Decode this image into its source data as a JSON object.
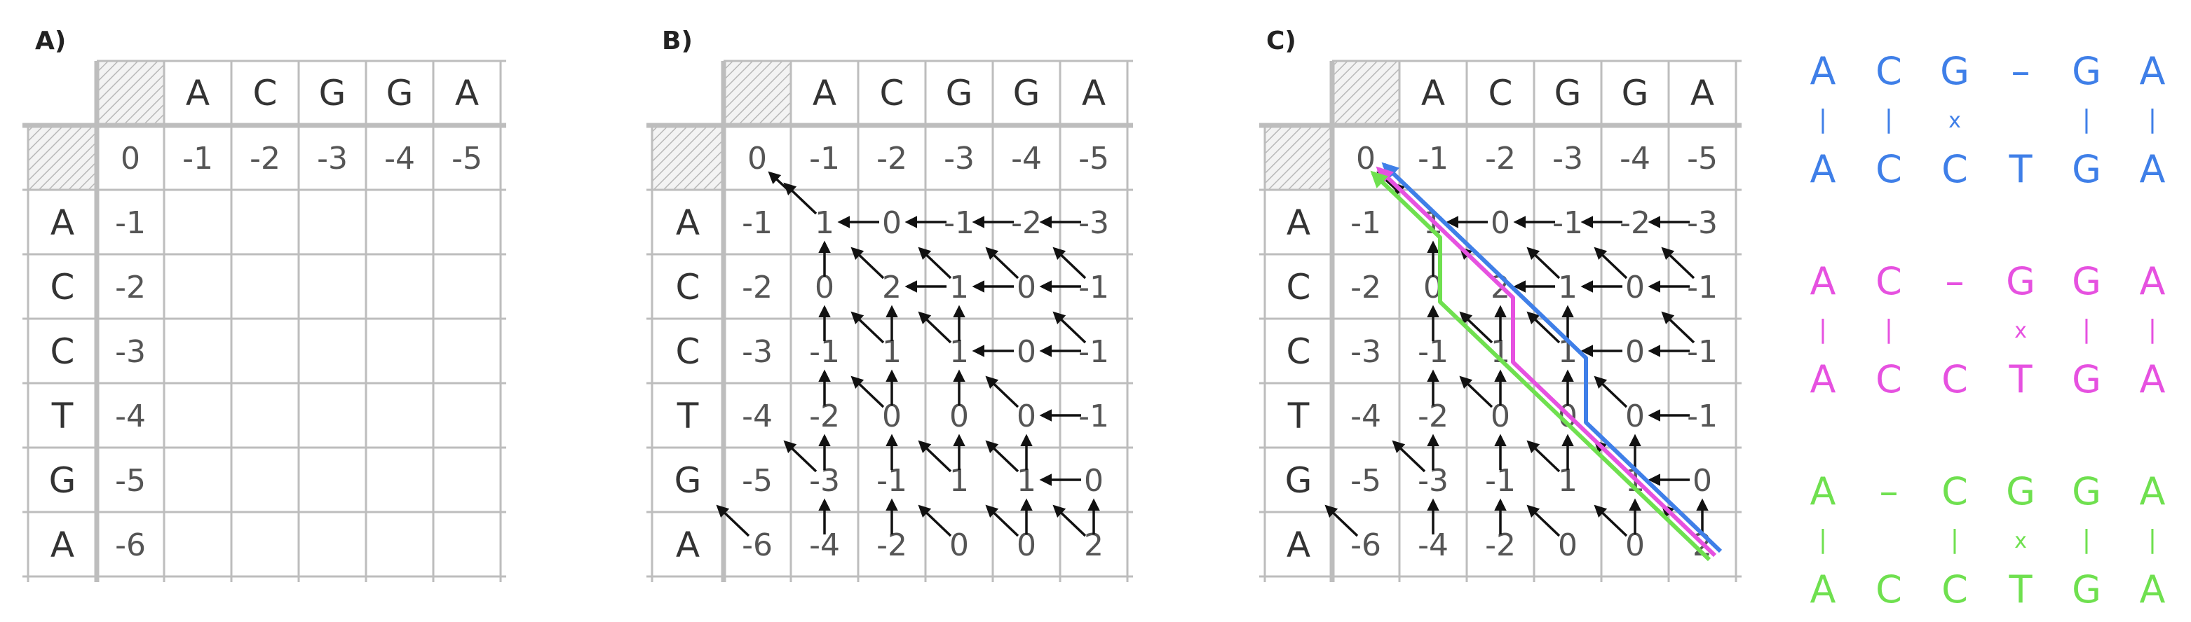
{
  "panels": [
    {
      "label": "A)",
      "cols": [
        "A",
        "C",
        "G",
        "G",
        "A"
      ],
      "rows": [
        "A",
        "C",
        "C",
        "T",
        "G",
        "A"
      ],
      "top_row": [
        "0",
        "-1",
        "-2",
        "-3",
        "-4",
        "-5"
      ],
      "left_col": [
        "-1",
        "-2",
        "-3",
        "-4",
        "-5",
        "-6"
      ],
      "cells": [
        [
          "",
          "",
          "",
          "",
          ""
        ],
        [
          "",
          "",
          "",
          "",
          ""
        ],
        [
          "",
          "",
          "",
          "",
          ""
        ],
        [
          "",
          "",
          "",
          "",
          ""
        ],
        [
          "",
          "",
          "",
          "",
          ""
        ],
        [
          "",
          "",
          "",
          "",
          ""
        ]
      ]
    },
    {
      "label": "B)",
      "cols": [
        "A",
        "C",
        "G",
        "G",
        "A"
      ],
      "rows": [
        "A",
        "C",
        "C",
        "T",
        "G",
        "A"
      ],
      "top_row": [
        "0",
        "-1",
        "-2",
        "-3",
        "-4",
        "-5"
      ],
      "left_col": [
        "-1",
        "-2",
        "-3",
        "-4",
        "-5",
        "-6"
      ],
      "cells": [
        [
          "1",
          "0",
          "-1",
          "-2",
          "-3"
        ],
        [
          "0",
          "2",
          "1",
          "0",
          "-1"
        ],
        [
          "-1",
          "1",
          "1",
          "0",
          "-1"
        ],
        [
          "-2",
          "0",
          "0",
          "0",
          "-1"
        ],
        [
          "-3",
          "-1",
          "1",
          "1",
          "0"
        ],
        [
          "-4",
          "-2",
          "0",
          "0",
          "2"
        ]
      ]
    },
    {
      "label": "C)",
      "cols": [
        "A",
        "C",
        "G",
        "G",
        "A"
      ],
      "rows": [
        "A",
        "C",
        "C",
        "T",
        "G",
        "A"
      ],
      "top_row": [
        "0",
        "-1",
        "-2",
        "-3",
        "-4",
        "-5"
      ],
      "left_col": [
        "-1",
        "-2",
        "-3",
        "-4",
        "-5",
        "-6"
      ],
      "cells": [
        [
          "1",
          "0",
          "-1",
          "-2",
          "-3"
        ],
        [
          "0",
          "2",
          "1",
          "0",
          "-1"
        ],
        [
          "-1",
          "1",
          "1",
          "0",
          "-1"
        ],
        [
          "-2",
          "0",
          "0",
          "0",
          "-1"
        ],
        [
          "-3",
          "-1",
          "1",
          "1",
          "0"
        ],
        [
          "-4",
          "-2",
          "0",
          "0",
          "2"
        ]
      ]
    }
  ],
  "alignments": [
    {
      "color": "#3f7fe8",
      "top": [
        "A",
        "C",
        "G",
        "–",
        "G",
        "A"
      ],
      "marks": [
        "|",
        "|",
        "x",
        "",
        "|",
        "|"
      ],
      "bottom": [
        "A",
        "C",
        "C",
        "T",
        "G",
        "A"
      ]
    },
    {
      "color": "#e651e0",
      "top": [
        "A",
        "C",
        "–",
        "G",
        "G",
        "A"
      ],
      "marks": [
        "|",
        "|",
        "",
        "x",
        "|",
        "|"
      ],
      "bottom": [
        "A",
        "C",
        "C",
        "T",
        "G",
        "A"
      ]
    },
    {
      "color": "#6fe04f",
      "top": [
        "A",
        "–",
        "C",
        "G",
        "G",
        "A"
      ],
      "marks": [
        "|",
        "",
        "|",
        "x",
        "|",
        "|"
      ],
      "bottom": [
        "A",
        "C",
        "C",
        "T",
        "G",
        "A"
      ]
    }
  ],
  "colors": {
    "grid": "#bdbdbd",
    "hatch": "#b8b8b8",
    "text": "#555555",
    "arrow": "#111111",
    "path_blue": "#3f7fe8",
    "path_magenta": "#e651e0",
    "path_green": "#6fe04f"
  }
}
